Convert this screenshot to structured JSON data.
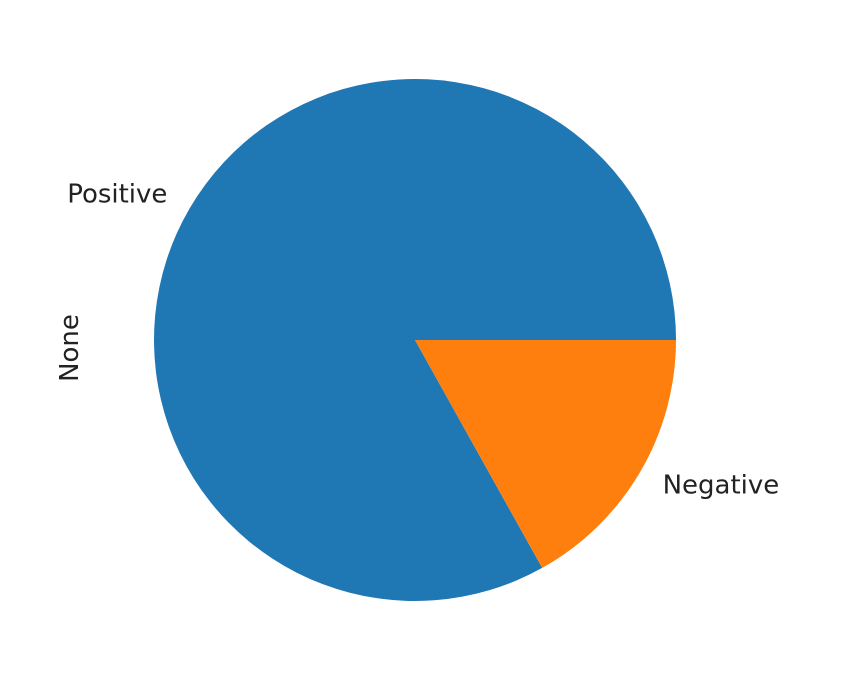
{
  "chart_data": {
    "type": "pie",
    "ylabel": "None",
    "slices": [
      {
        "label": "Positive",
        "value": 83.1,
        "color": "#1f77b4"
      },
      {
        "label": "Negative",
        "value": 16.9,
        "color": "#ff7f0e"
      }
    ],
    "start_angle": 0,
    "direction": "counterclockwise"
  }
}
